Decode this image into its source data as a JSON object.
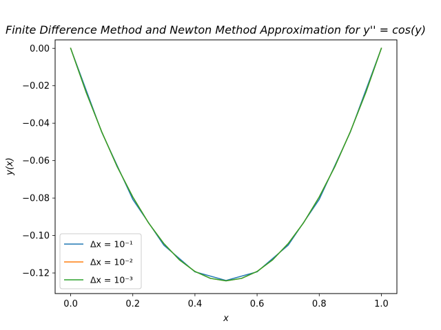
{
  "chart_data": {
    "type": "line",
    "title": "Finite Difference Method and Newton Method Approximation for y'' = cos(y)",
    "xlabel": "x",
    "ylabel": "y(x)",
    "xlim": [
      -0.05,
      1.05
    ],
    "ylim": [
      -0.131,
      0.0045
    ],
    "xticks": [
      0.0,
      0.2,
      0.4,
      0.6,
      0.8,
      1.0
    ],
    "xtick_labels": [
      "0.0",
      "0.2",
      "0.4",
      "0.6",
      "0.8",
      "1.0"
    ],
    "yticks": [
      0.0,
      -0.02,
      -0.04,
      -0.06,
      -0.08,
      -0.1,
      -0.12
    ],
    "ytick_labels": [
      "0.00",
      "−0.02",
      "−0.04",
      "−0.06",
      "−0.08",
      "−0.10",
      "−0.12"
    ],
    "grid": false,
    "legend_position": "lower-left",
    "series": [
      {
        "name": "Δx = 10⁻¹",
        "color": "#1f77b4",
        "x": [
          0.0,
          0.1,
          0.2,
          0.3,
          0.4,
          0.5,
          0.6,
          0.7,
          0.8,
          0.9,
          1.0
        ],
        "y": [
          0.0,
          -0.0448,
          -0.0807,
          -0.1052,
          -0.1194,
          -0.124,
          -0.1194,
          -0.1052,
          -0.0807,
          -0.0448,
          0.0
        ]
      },
      {
        "name": "Δx = 10⁻²",
        "color": "#ff7f0e",
        "x": [
          0.0,
          0.05,
          0.1,
          0.15,
          0.2,
          0.25,
          0.3,
          0.35,
          0.4,
          0.45,
          0.5,
          0.55,
          0.6,
          0.65,
          0.7,
          0.75,
          0.8,
          0.85,
          0.9,
          0.95,
          1.0
        ],
        "y": [
          0.0,
          -0.0236,
          -0.0446,
          -0.0633,
          -0.0794,
          -0.0931,
          -0.1043,
          -0.113,
          -0.1192,
          -0.1229,
          -0.1242,
          -0.1229,
          -0.1192,
          -0.113,
          -0.1043,
          -0.0931,
          -0.0794,
          -0.0633,
          -0.0446,
          -0.0236,
          0.0
        ]
      },
      {
        "name": "Δx = 10⁻³",
        "color": "#2ca02c",
        "x": [
          0.0,
          0.05,
          0.1,
          0.15,
          0.2,
          0.25,
          0.3,
          0.35,
          0.4,
          0.45,
          0.5,
          0.55,
          0.6,
          0.65,
          0.7,
          0.75,
          0.8,
          0.85,
          0.9,
          0.95,
          1.0
        ],
        "y": [
          0.0,
          -0.0236,
          -0.0446,
          -0.0633,
          -0.0794,
          -0.0931,
          -0.1043,
          -0.113,
          -0.1192,
          -0.1229,
          -0.1242,
          -0.1229,
          -0.1192,
          -0.113,
          -0.1043,
          -0.0931,
          -0.0794,
          -0.0633,
          -0.0446,
          -0.0236,
          0.0
        ]
      }
    ]
  }
}
